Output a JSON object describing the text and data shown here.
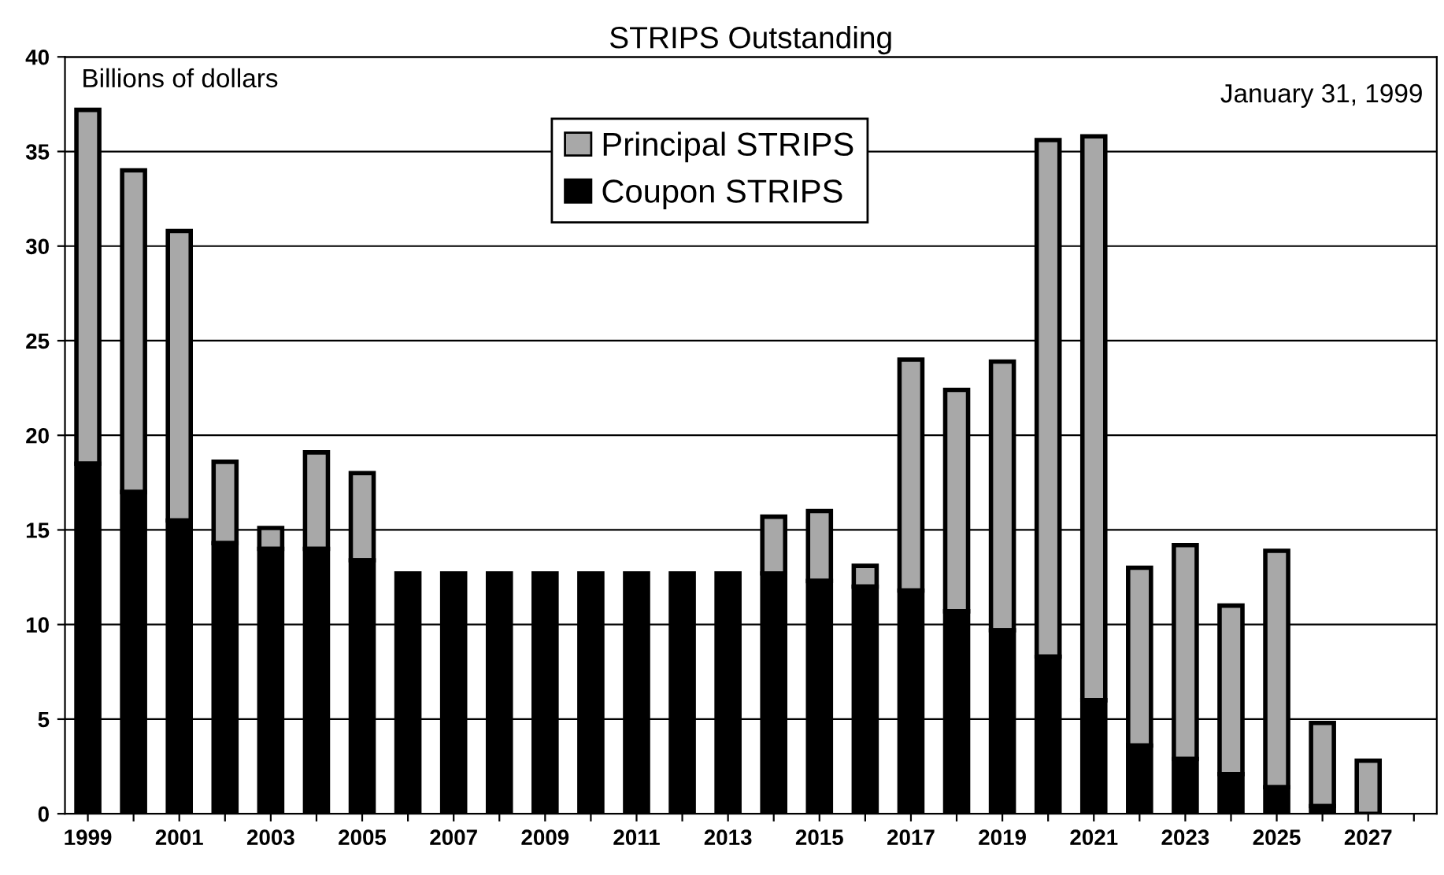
{
  "chart_data": {
    "type": "bar",
    "title": "STRIPS Outstanding",
    "stacked": true,
    "categories": [
      "1999",
      null,
      "2001",
      null,
      "2003",
      null,
      "2005",
      null,
      "2007",
      null,
      "2009",
      null,
      "2011",
      null,
      "2013",
      null,
      "2015",
      null,
      "2017",
      null,
      "2019",
      null,
      "2021",
      null,
      "2023",
      null,
      "2025",
      null,
      "2027",
      null
    ],
    "series": [
      {
        "name": "Coupon STRIPS",
        "color": "#000000",
        "values": [
          18.5,
          17.0,
          15.5,
          14.3,
          14.0,
          14.0,
          13.4,
          12.7,
          12.7,
          12.7,
          12.7,
          12.7,
          12.7,
          12.7,
          12.7,
          12.7,
          12.3,
          12.0,
          11.8,
          10.7,
          9.7,
          8.3,
          6.0,
          3.6,
          2.9,
          2.1,
          1.4,
          0.4,
          null,
          null
        ]
      },
      {
        "name": "Principal STRIPS",
        "color": "#a8a8a8",
        "values": [
          18.7,
          17.0,
          15.3,
          4.3,
          1.1,
          5.1,
          4.6,
          0,
          0,
          0,
          0,
          0,
          0,
          0,
          0,
          3.0,
          3.7,
          1.1,
          12.2,
          11.7,
          14.2,
          27.3,
          29.8,
          9.4,
          11.3,
          8.9,
          12.5,
          4.4,
          2.8,
          null
        ]
      }
    ],
    "ylim": [
      0,
      40
    ],
    "yticks": [
      0,
      5,
      10,
      15,
      20,
      25,
      30,
      35,
      40
    ],
    "grid": "y",
    "legend": "top",
    "annotations": [
      "Billions of dollars",
      "January 31, 1999"
    ]
  }
}
